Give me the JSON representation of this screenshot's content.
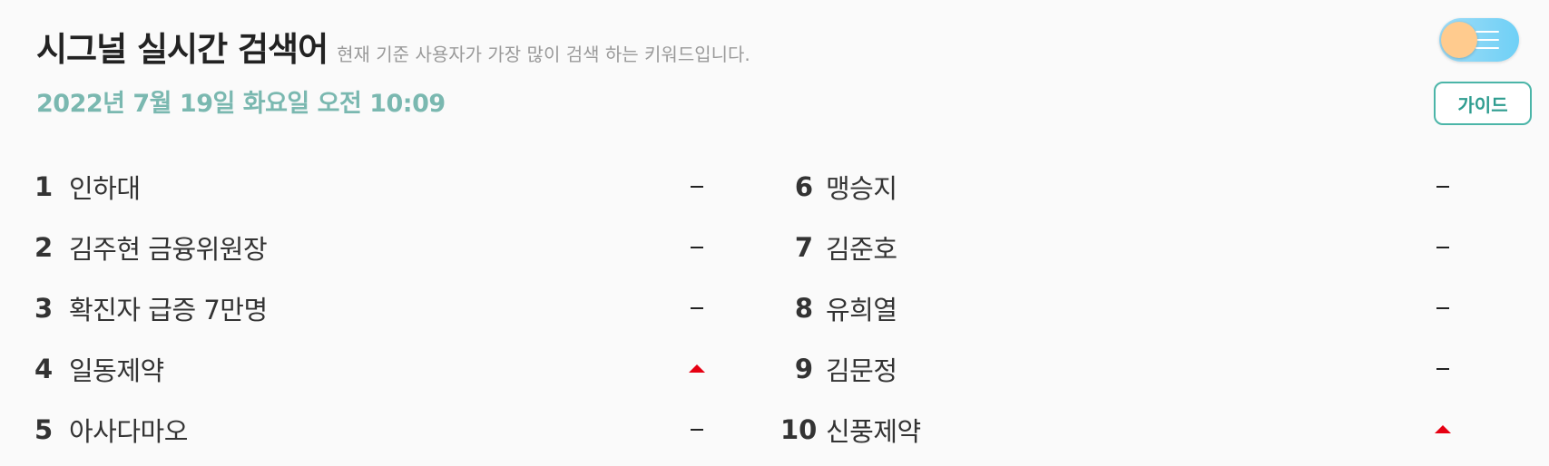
{
  "header": {
    "title": "시그널 실시간 검색어",
    "subtitle": "현재 기준 사용자가 가장 많이 검색 하는 키워드입니다.",
    "date": "2022년 7월 19일 화요일 오전 10:09"
  },
  "controls": {
    "guide_label": "가이드",
    "toggle_icon": "menu-lines-icon"
  },
  "colors": {
    "accent": "#7ab8b0",
    "guide_border": "#4bb5a8",
    "trend_up": "#e60012",
    "toggle_track": "#6fd0f6",
    "toggle_knob": "#ffcb8e"
  },
  "keywords_left": [
    {
      "rank": "1",
      "keyword": "인하대",
      "trend": "same"
    },
    {
      "rank": "2",
      "keyword": "김주현 금융위원장",
      "trend": "same"
    },
    {
      "rank": "3",
      "keyword": "확진자 급증 7만명",
      "trend": "same"
    },
    {
      "rank": "4",
      "keyword": "일동제약",
      "trend": "up"
    },
    {
      "rank": "5",
      "keyword": "아사다마오",
      "trend": "same"
    }
  ],
  "keywords_right": [
    {
      "rank": "6",
      "keyword": "맹승지",
      "trend": "same"
    },
    {
      "rank": "7",
      "keyword": "김준호",
      "trend": "same"
    },
    {
      "rank": "8",
      "keyword": "유희열",
      "trend": "same"
    },
    {
      "rank": "9",
      "keyword": "김문정",
      "trend": "same"
    },
    {
      "rank": "10",
      "keyword": "신풍제약",
      "trend": "up"
    }
  ]
}
